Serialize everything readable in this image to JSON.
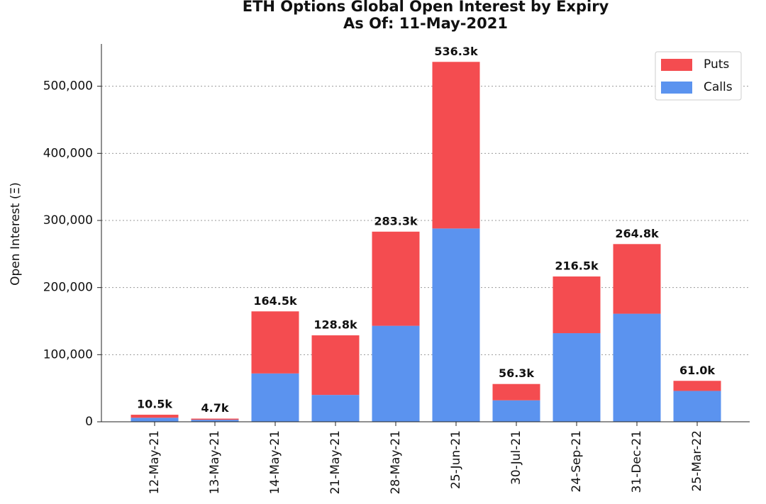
{
  "chart_data": {
    "type": "stacked_bar",
    "title": "ETH Options Global Open Interest by Expiry",
    "subtitle": "As Of: 11-May-2021",
    "y_label": "Open Interest (Ξ)",
    "categories": [
      "12-May-21",
      "13-May-21",
      "14-May-21",
      "21-May-21",
      "28-May-21",
      "25-Jun-21",
      "30-Jul-21",
      "24-Sep-21",
      "31-Dec-21",
      "25-Mar-22"
    ],
    "series": [
      {
        "name": "Calls",
        "color": "#5b93ef",
        "values": [
          6000,
          3000,
          72000,
          40000,
          143000,
          288000,
          32000,
          132000,
          161000,
          46000
        ]
      },
      {
        "name": "Puts",
        "color": "#f44c50",
        "values": [
          4500,
          1700,
          92500,
          88800,
          140300,
          248300,
          24300,
          84500,
          103800,
          15000
        ]
      }
    ],
    "totals": [
      10500,
      4700,
      164500,
      128800,
      283300,
      536300,
      56300,
      216500,
      264800,
      61000
    ],
    "total_labels": [
      "10.5k",
      "4.7k",
      "164.5k",
      "128.8k",
      "283.3k",
      "536.3k",
      "56.3k",
      "216.5k",
      "264.8k",
      "61.0k"
    ],
    "ylim": [
      0,
      563000
    ],
    "yticks": [
      0,
      {
        "value": 100000,
        "label": "100,000"
      },
      {
        "value": 200000,
        "label": "200,000"
      },
      {
        "value": 300000,
        "label": "300,000"
      },
      {
        "value": 400000,
        "label": "400,000"
      },
      {
        "value": 500000,
        "label": "500,000"
      }
    ],
    "grid": true,
    "legend": "upper right"
  }
}
